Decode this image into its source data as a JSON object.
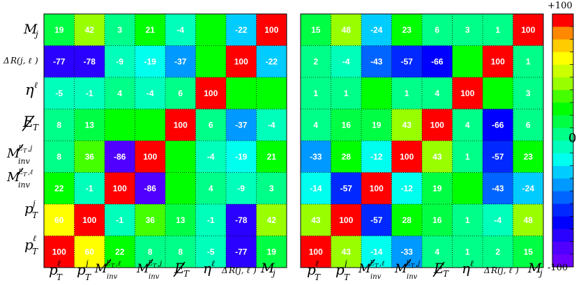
{
  "chart_data": [
    {
      "type": "heatmap",
      "title": "",
      "x_labels": [
        "pTℓ",
        "pTj",
        "Minv(ET,ℓ)",
        "Minv(ET,j)",
        "ET-miss",
        "ηℓ",
        "ΔR(j,ℓ)",
        "Mj"
      ],
      "y_labels": [
        "Mj",
        "ΔR(j,ℓ)",
        "ηℓ",
        "ET-miss",
        "Minv(ET,j)",
        "Minv(ET,ℓ)",
        "pTj",
        "pTℓ"
      ],
      "values": [
        [
          19,
          42,
          3,
          21,
          -4,
          null,
          -22,
          100
        ],
        [
          -77,
          -78,
          -9,
          -19,
          -37,
          null,
          100,
          -22
        ],
        [
          -5,
          -1,
          4,
          -4,
          6,
          100,
          null,
          null
        ],
        [
          8,
          13,
          null,
          null,
          100,
          6,
          -37,
          -4
        ],
        [
          8,
          36,
          -86,
          100,
          null,
          -4,
          -19,
          21
        ],
        [
          22,
          -1,
          100,
          -86,
          null,
          4,
          -9,
          3
        ],
        [
          60,
          100,
          -1,
          36,
          13,
          -1,
          -78,
          42
        ],
        [
          100,
          60,
          22,
          8,
          8,
          -5,
          -77,
          19
        ]
      ]
    },
    {
      "type": "heatmap",
      "title": "",
      "x_labels": [
        "pTℓ",
        "pTj",
        "Minv(ET,ℓ)",
        "Minv(ET,j)",
        "ET-miss",
        "ηℓ",
        "ΔR(j,ℓ)",
        "Mj"
      ],
      "y_labels": [
        "Mj",
        "ΔR(j,ℓ)",
        "ηℓ",
        "ET-miss",
        "Minv(ET,j)",
        "Minv(ET,ℓ)",
        "pTj",
        "pTℓ"
      ],
      "values": [
        [
          15,
          48,
          -24,
          23,
          6,
          3,
          1,
          100
        ],
        [
          2,
          -4,
          -43,
          -57,
          -66,
          null,
          100,
          1
        ],
        [
          1,
          1,
          null,
          1,
          4,
          100,
          null,
          3
        ],
        [
          4,
          16,
          19,
          43,
          100,
          4,
          -66,
          6
        ],
        [
          -33,
          28,
          -12,
          100,
          43,
          1,
          -57,
          23
        ],
        [
          -14,
          -57,
          100,
          -12,
          19,
          null,
          -43,
          -24
        ],
        [
          43,
          100,
          -57,
          28,
          16,
          1,
          -4,
          48
        ],
        [
          100,
          43,
          -14,
          -33,
          4,
          1,
          2,
          15
        ]
      ]
    }
  ],
  "colorbar": {
    "max_label": "+100",
    "mid_label": "0",
    "min_label": "-100",
    "range": [
      -100,
      100
    ],
    "steps": 20
  }
}
